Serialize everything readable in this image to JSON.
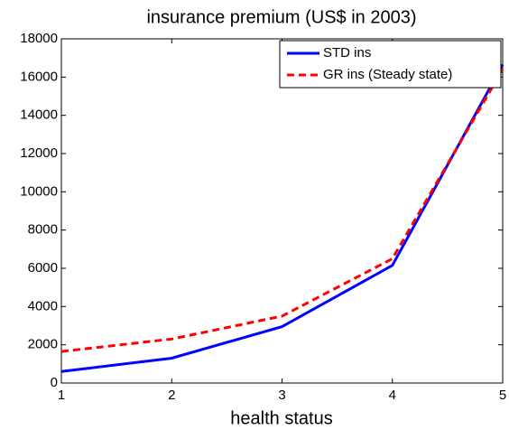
{
  "chart_data": {
    "type": "line",
    "title": "insurance premium (US$ in 2003)",
    "x_label": "health status",
    "x": [
      1,
      2,
      3,
      4,
      5
    ],
    "series": [
      {
        "name": "STD ins",
        "color": "#0000ff",
        "style": "solid",
        "values": [
          600,
          1300,
          2950,
          6150,
          16650
        ]
      },
      {
        "name": "GR ins (Steady state)",
        "color": "#ff0000",
        "style": "dashed",
        "values": [
          1650,
          2300,
          3500,
          6500,
          16400
        ]
      }
    ],
    "xlim": [
      1,
      5
    ],
    "xticks": [
      1,
      2,
      3,
      4,
      5
    ],
    "ylim": [
      0,
      18000
    ],
    "yticks": [
      0,
      2000,
      4000,
      6000,
      8000,
      10000,
      12000,
      14000,
      16000,
      18000
    ],
    "legend": "upper right",
    "grid": false
  }
}
